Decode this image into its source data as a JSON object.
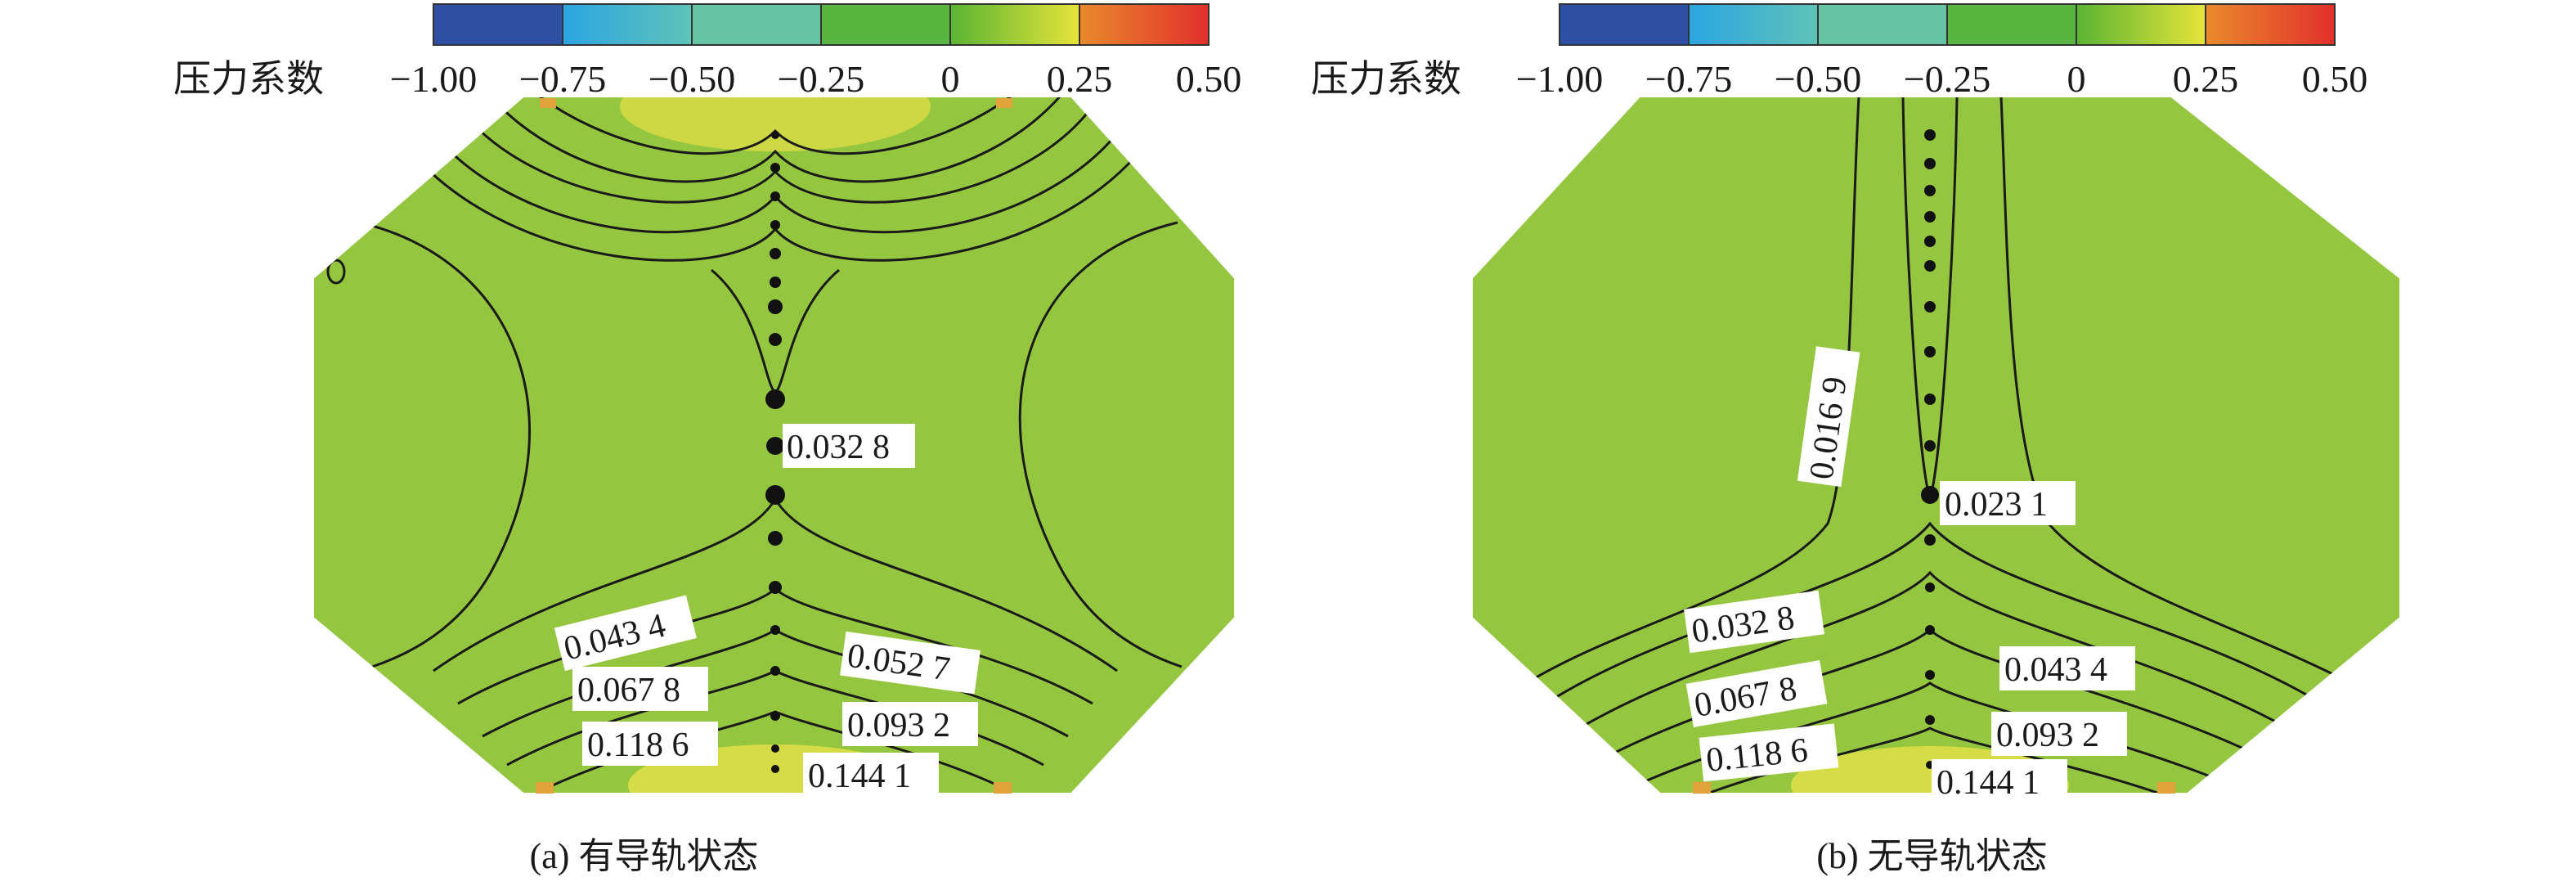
{
  "legend": {
    "title": "压力系数",
    "ticks": [
      "−1.00",
      "−0.75",
      "−0.50",
      "−0.25",
      "0",
      "0.25",
      "0.50"
    ],
    "colors": [
      "#2e4fa3",
      "#2fb2e6",
      "#66c3a3",
      "#55b648",
      "#5ab433",
      "#c9dc2e",
      "#e23a2c"
    ]
  },
  "panels": [
    {
      "id": "a",
      "caption": "(a) 有导轨状态",
      "field_color": "#94c73f",
      "hotspot_color": "#dfe04a",
      "contour_labels": [
        "0.032 8",
        "0.043 4",
        "0.067 8",
        "0.118 6",
        "0.052 7",
        "0.093 2",
        "0.144 1"
      ]
    },
    {
      "id": "b",
      "caption": "(b) 无导轨状态",
      "field_color": "#94c73f",
      "hotspot_color": "#dfe04a",
      "contour_labels": [
        "0.016 9",
        "0.023 1",
        "0.032 8",
        "0.067 8",
        "0.118 6",
        "0.043 4",
        "0.093 2",
        "0.144 1"
      ]
    }
  ]
}
